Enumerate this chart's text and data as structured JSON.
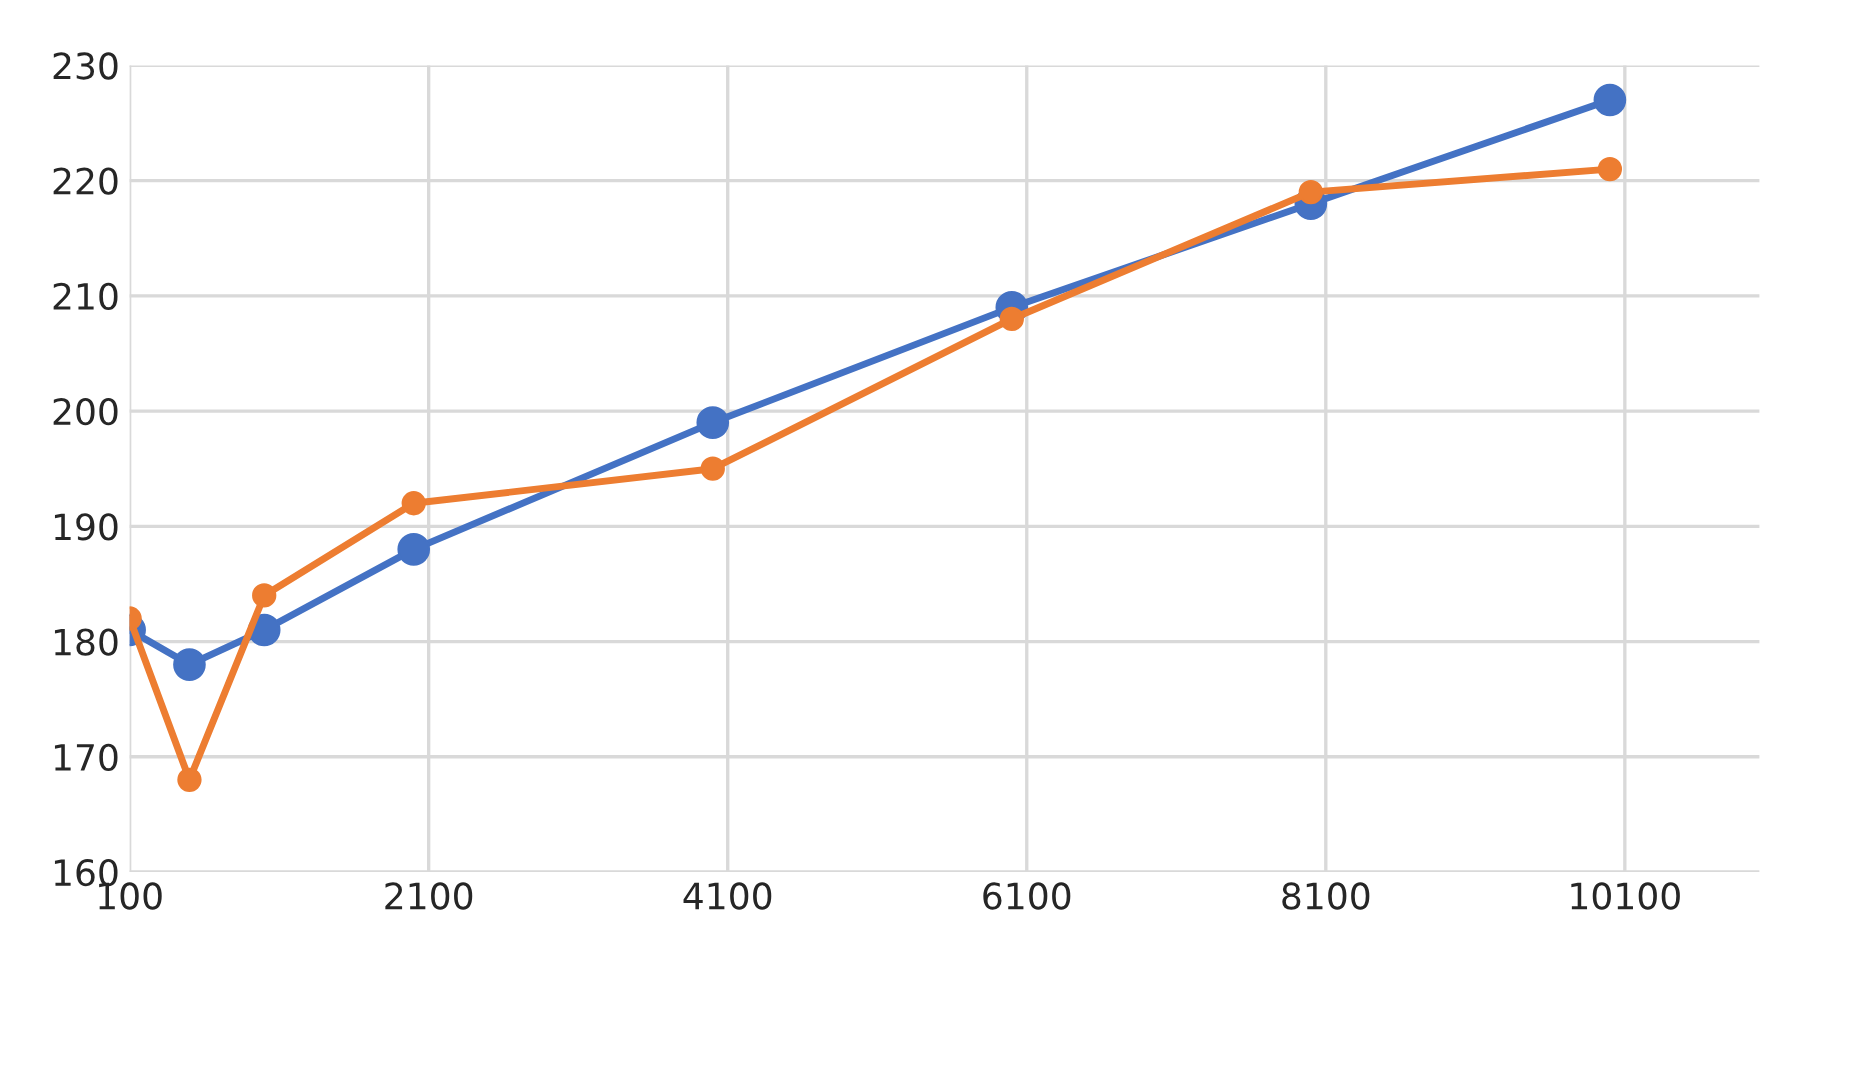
{
  "chart_data": {
    "type": "line",
    "x": [
      100,
      500,
      1000,
      2000,
      4000,
      6000,
      8000,
      10000
    ],
    "series": [
      {
        "color": "#4472c4",
        "values": [
          181,
          178,
          181,
          188,
          199,
          209,
          218,
          227
        ]
      },
      {
        "color": "#ed7d31",
        "values": [
          182,
          168,
          184,
          192,
          195,
          208,
          219,
          221
        ]
      }
    ],
    "xlim": [
      100,
      11000
    ],
    "xticks": [
      100,
      2100,
      4100,
      6100,
      8100,
      10100
    ],
    "ylim": [
      160,
      230
    ],
    "yticks": [
      160,
      170,
      180,
      190,
      200,
      210,
      220,
      230
    ],
    "grid": true,
    "marker": "circle",
    "line_style": "solid"
  }
}
